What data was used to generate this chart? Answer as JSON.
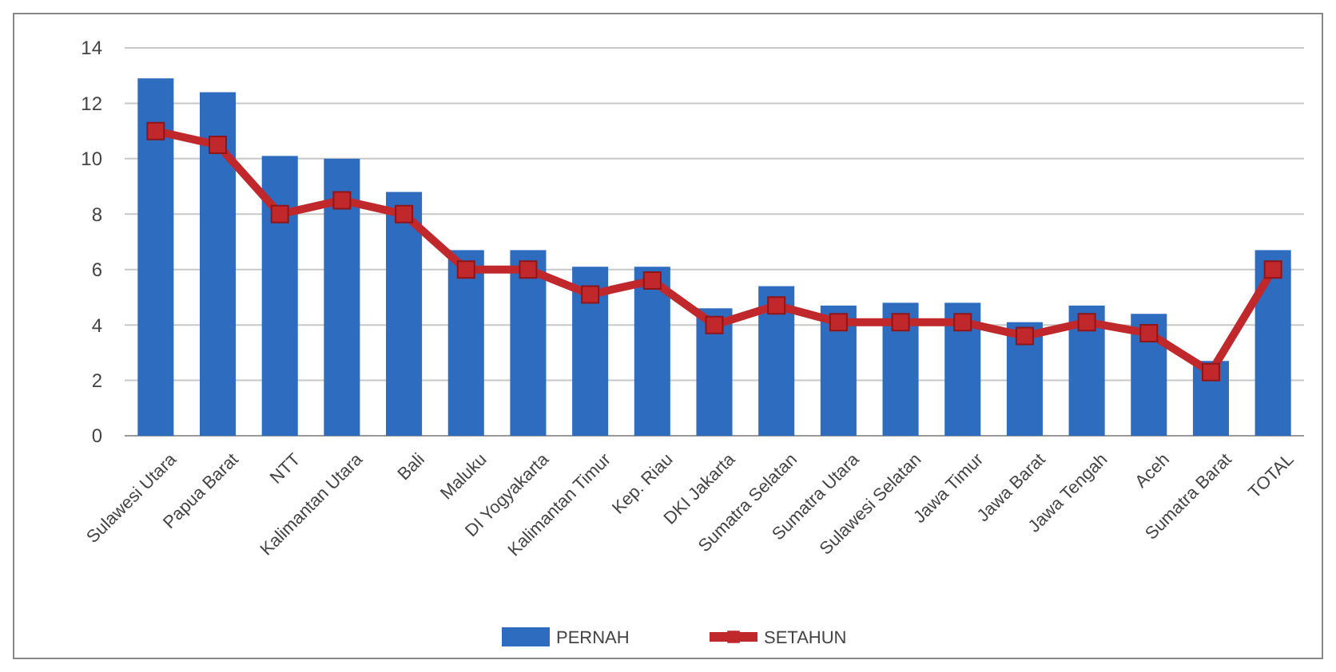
{
  "chart_data": {
    "type": "bar",
    "categories": [
      "Sulawesi Utara",
      "Papua Barat",
      "NTT",
      "Kalimantan Utara",
      "Bali",
      "Maluku",
      "DI Yogyakarta",
      "Kalimantan Timur",
      "Kep. Riau",
      "DKI Jakarta",
      "Sumatra Selatan",
      "Sumatra Utara",
      "Sulawesi Selatan",
      "Jawa Timur",
      "Jawa Barat",
      "Jawa Tengah",
      "Aceh",
      "Sumatra Barat",
      "TOTAL"
    ],
    "series": [
      {
        "name": "PERNAH",
        "color": "#2e6cc0",
        "values": [
          12.9,
          12.4,
          10.1,
          10.0,
          8.8,
          6.7,
          6.7,
          6.1,
          6.1,
          4.6,
          5.4,
          4.7,
          4.8,
          4.8,
          4.1,
          4.7,
          4.4,
          2.7,
          6.7
        ]
      },
      {
        "name": "SETAHUN",
        "type": "line",
        "color": "#c0282c",
        "marker": "square",
        "values": [
          11.0,
          10.5,
          8.0,
          8.5,
          8.0,
          6.0,
          6.0,
          5.1,
          5.6,
          4.0,
          4.7,
          4.1,
          4.1,
          4.1,
          3.6,
          4.1,
          3.7,
          2.3,
          6.0
        ]
      }
    ],
    "ylim": [
      0,
      14
    ],
    "yticks": [
      0,
      2,
      4,
      6,
      8,
      10,
      12,
      14
    ],
    "grid": "y",
    "legend": "bottom"
  }
}
